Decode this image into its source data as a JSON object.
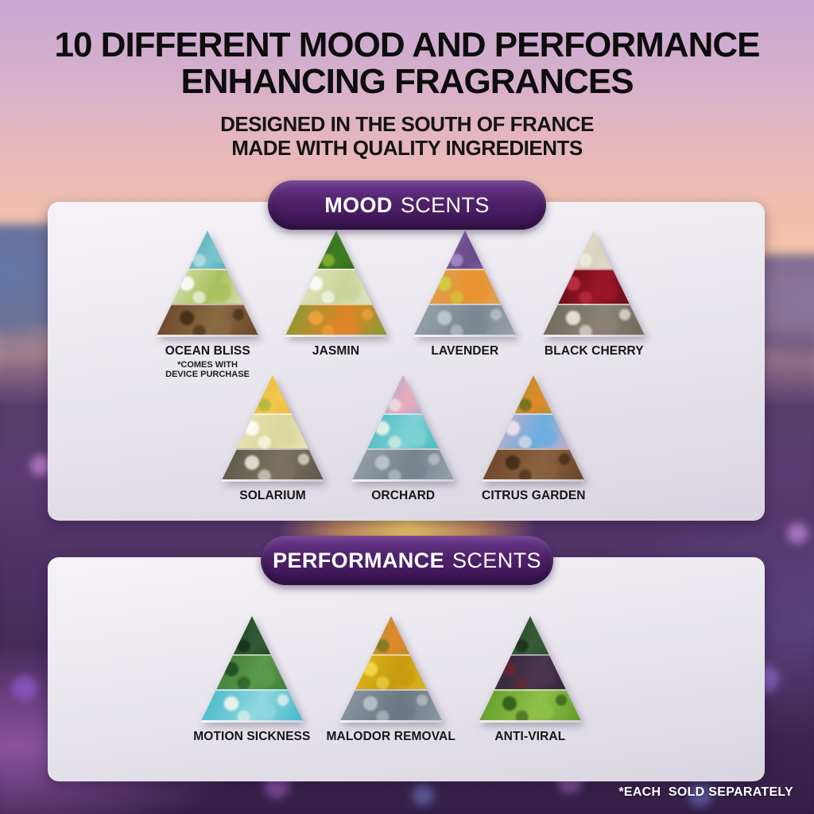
{
  "page": {
    "title": [
      "10 DIFFERENT MOOD AND PERFORMANCE",
      "ENHANCING FRAGRANCES"
    ],
    "subtitle": [
      "DESIGNED IN THE SOUTH OF FRANCE",
      "MADE WITH QUALITY INGREDIENTS"
    ],
    "footnote": "*EACH  SOLD SEPARATELY"
  },
  "colors": {
    "badge_purple_top": "#6b3a8e",
    "badge_purple_bottom": "#3a1454",
    "badge_text": "#ffffff",
    "panel_light": "#f5f3f7",
    "panel_dark": "#d9d5e0",
    "sky_top": "#c9a9d5",
    "sky_salmon": "#f8cda1",
    "sun_glow": "#ffd866",
    "field_purple": "#58396e",
    "field_dark": "#2b1a3e",
    "title_text": "#0d0d0d",
    "label_text": "#161616"
  },
  "sections": [
    {
      "id": "mood",
      "label_bold": "MOOD",
      "label_rest": "SCENTS",
      "rows": [
        [
          {
            "name": "OCEAN BLISS",
            "note": "*COMES WITH\nDEVICE PURCHASE",
            "bands": [
              [
                "#2e8da1",
                "#77c4cc",
                "#d8f0ef"
              ],
              [
                "#e9ecd4",
                "#a9c05c",
                "#ffffff"
              ],
              [
                "#6b4326",
                "#8a6a42",
                "#3f2a14"
              ]
            ]
          },
          {
            "name": "JASMIN",
            "bands": [
              [
                "#225c18",
                "#3f7d22",
                "#a9c832"
              ],
              [
                "#efecd2",
                "#c9d49a",
                "#ffffff"
              ],
              [
                "#7f9c37",
                "#e08426",
                "#f5a33c"
              ]
            ]
          },
          {
            "name": "LAVENDER",
            "bands": [
              [
                "#8f6fb0",
                "#6a4b8c",
                "#c2a6de"
              ],
              [
                "#d9a864",
                "#e9932f",
                "#cbd23e"
              ],
              [
                "#9aa6ae",
                "#7a8790",
                "#c6ccd1"
              ]
            ]
          },
          {
            "name": "BLACK CHERRY",
            "bands": [
              [
                "#ece7d8",
                "#d9d2bf",
                "#f8f5ec"
              ],
              [
                "#4a0a12",
                "#9c1626",
                "#c03344"
              ],
              [
                "#6f685a",
                "#8a8274",
                "#f2efe2"
              ]
            ]
          }
        ],
        [
          {
            "name": "SOLARIUM",
            "bands": [
              [
                "#e3a62f",
                "#f1c84c",
                "#97ad3f"
              ],
              [
                "#eee8c2",
                "#d9d89a",
                "#ffffff"
              ],
              [
                "#5c5547",
                "#7a7260",
                "#efece0"
              ]
            ]
          },
          {
            "name": "ORCHARD",
            "bands": [
              [
                "#66abdd",
                "#e9aabd",
                "#f6f3f0"
              ],
              [
                "#2fb2ba",
                "#7fd2d4",
                "#f2f4e8"
              ],
              [
                "#97a3ab",
                "#77838c",
                "#c3c9ce"
              ]
            ]
          },
          {
            "name": "CITRUS GARDEN",
            "bands": [
              [
                "#6f9a30",
                "#e0892a",
                "#3f6418"
              ],
              [
                "#e8b0c3",
                "#6aaede",
                "#f7e8ee"
              ],
              [
                "#6a4326",
                "#8a6240",
                "#3e2812"
              ]
            ]
          }
        ]
      ]
    },
    {
      "id": "performance",
      "label_bold": "PERFORMANCE",
      "label_rest": "SCENTS",
      "rows": [
        [
          {
            "name": "MOTION SICKNESS",
            "bands": [
              [
                "#16301c",
                "#2f5a33",
                "#0c1c10"
              ],
              [
                "#35702e",
                "#5a9a4a",
                "#1e4a1e"
              ],
              [
                "#3fb6c9",
                "#8fd7de",
                "#faf7ee"
              ]
            ]
          },
          {
            "name": "MALODOR REMOVAL",
            "bands": [
              [
                "#7d9a3c",
                "#e0892a",
                "#55701f"
              ],
              [
                "#e9c31e",
                "#c79a10",
                "#f4da4e"
              ],
              [
                "#8d9aa3",
                "#6a7881",
                "#bcc6cc"
              ]
            ]
          },
          {
            "name": "ANTI-VIRAL",
            "bands": [
              [
                "#1c3a24",
                "#355c35",
                "#101f12"
              ],
              [
                "#2a2030",
                "#4a3550",
                "#6a2430"
              ],
              [
                "#5f9a28",
                "#8fc04a",
                "#2e5514"
              ]
            ]
          }
        ]
      ]
    }
  ]
}
